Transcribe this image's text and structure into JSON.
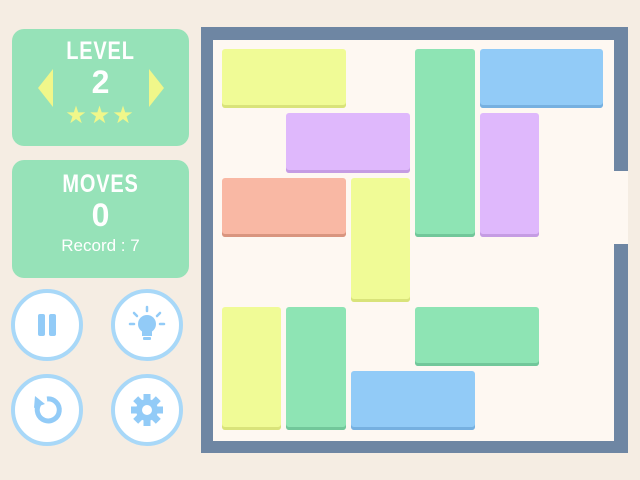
{
  "level": {
    "label": "LEVEL",
    "value": "2",
    "stars": 3
  },
  "moves": {
    "label": "MOVES",
    "value": "0",
    "record": "Record : 7"
  },
  "buttons": [
    "pause-icon",
    "hint-lightbulb-icon",
    "restart-icon",
    "settings-gear-icon"
  ],
  "colors": {
    "panel": "#96e2b8",
    "yellow": "#f0fb96",
    "green": "#8ee4b4",
    "blue": "#92cbf7",
    "purple": "#dfb8fc",
    "orange": "#f9b8a4",
    "frame": "#6e86a3"
  },
  "board": {
    "cols": 6,
    "rows": 6,
    "exit_row": 2,
    "blocks": [
      {
        "color": "yellow",
        "col": 0,
        "row": 0,
        "w": 2,
        "h": 1
      },
      {
        "color": "green",
        "col": 3,
        "row": 0,
        "w": 1,
        "h": 3
      },
      {
        "color": "blue",
        "col": 4,
        "row": 0,
        "w": 2,
        "h": 1
      },
      {
        "color": "purple",
        "col": 1,
        "row": 1,
        "w": 2,
        "h": 1
      },
      {
        "color": "purple",
        "col": 4,
        "row": 1,
        "w": 1,
        "h": 2
      },
      {
        "color": "orange",
        "col": 0,
        "row": 2,
        "w": 2,
        "h": 1
      },
      {
        "color": "yellow",
        "col": 2,
        "row": 2,
        "w": 1,
        "h": 2
      },
      {
        "color": "yellow",
        "col": 0,
        "row": 4,
        "w": 1,
        "h": 2
      },
      {
        "color": "green",
        "col": 1,
        "row": 4,
        "w": 1,
        "h": 2
      },
      {
        "color": "green",
        "col": 3,
        "row": 4,
        "w": 2,
        "h": 1
      },
      {
        "color": "blue",
        "col": 2,
        "row": 5,
        "w": 2,
        "h": 1
      }
    ]
  }
}
